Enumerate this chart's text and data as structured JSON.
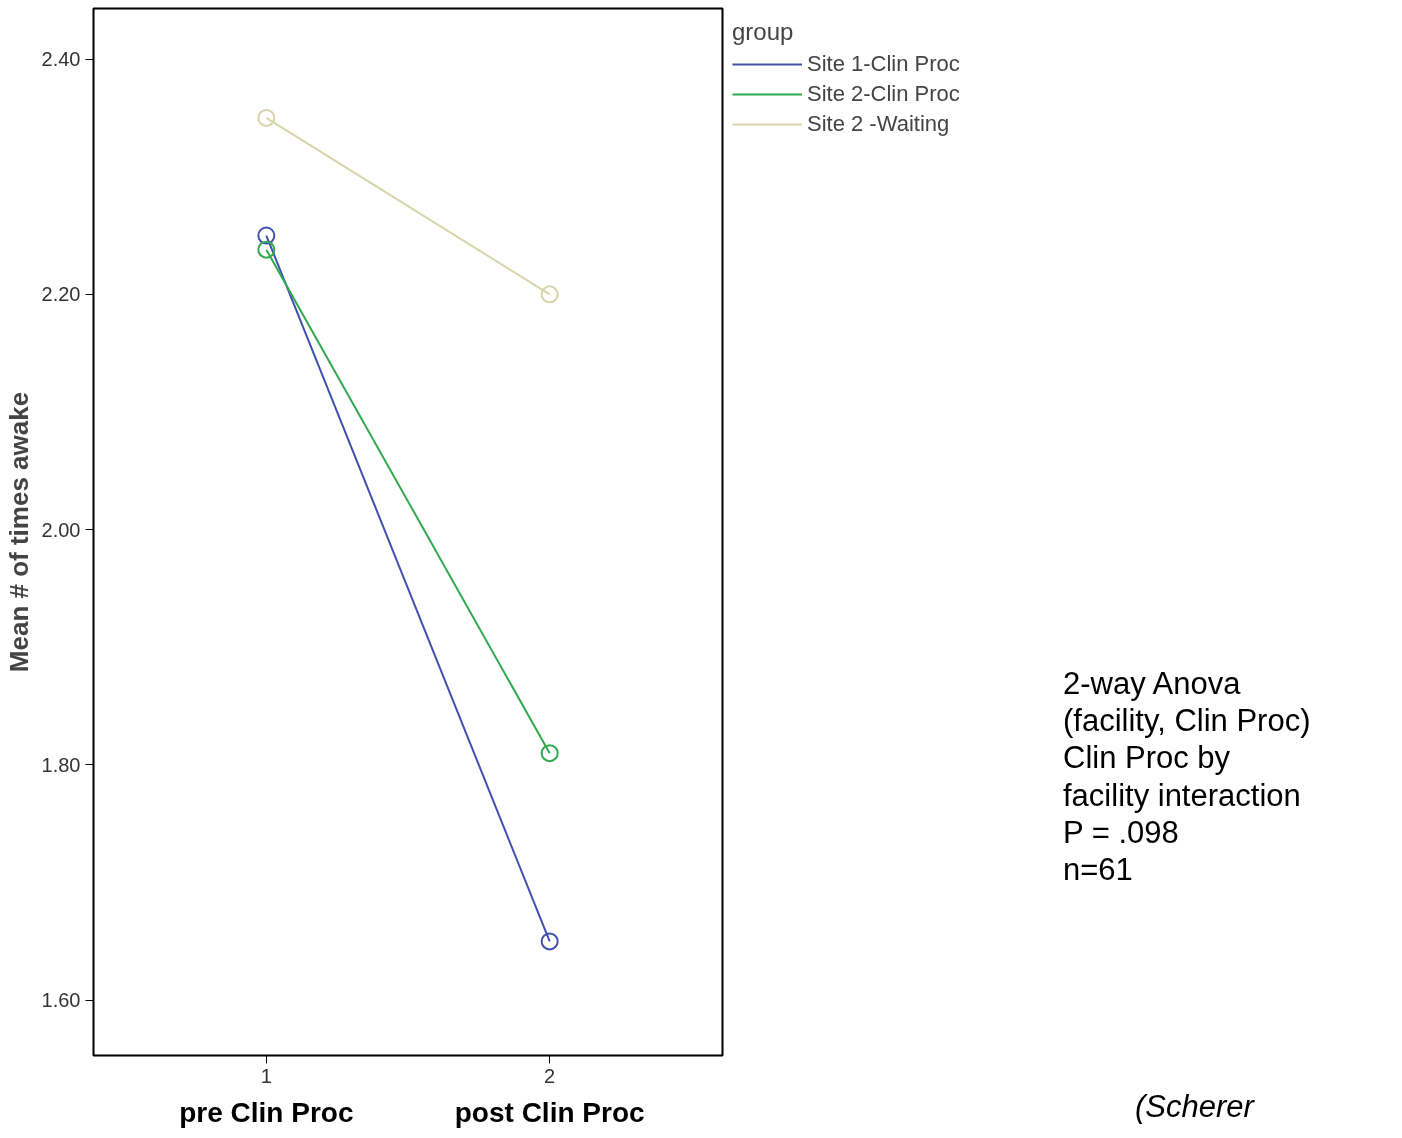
{
  "chart_data": {
    "type": "line",
    "ylabel": "Mean # of times awake",
    "legend_title": "group",
    "x": [
      1,
      2
    ],
    "xlim": [
      0.39,
      2.61
    ],
    "xticks": [
      1,
      2
    ],
    "ylim": [
      1.553,
      2.443
    ],
    "yticks": [
      {
        "value": 1.6,
        "label": "1.60"
      },
      {
        "value": 1.8,
        "label": "1.80"
      },
      {
        "value": 2.0,
        "label": "2.00"
      },
      {
        "value": 2.2,
        "label": "2.20"
      },
      {
        "value": 2.4,
        "label": "2.40"
      }
    ],
    "series": [
      {
        "name": "Site 1-Clin Proc",
        "color": "#4050b0",
        "values": [
          2.25,
          1.65
        ]
      },
      {
        "name": "Site 2-Clin Proc",
        "color": "#30a850",
        "values": [
          2.238,
          1.81
        ]
      },
      {
        "name": "Site 2 -Waiting",
        "color": "#d8d4a8",
        "values": [
          2.35,
          2.2
        ]
      }
    ],
    "marker": "circle",
    "grid": false,
    "legend": "top right",
    "annotations": [
      "pre Clin Proc",
      "post Clin Proc",
      "2-way Anova\n(facility, Clin Proc)\nClin Proc by\nfacility interaction\nP = .098\nn=61",
      "(Scherer"
    ]
  }
}
